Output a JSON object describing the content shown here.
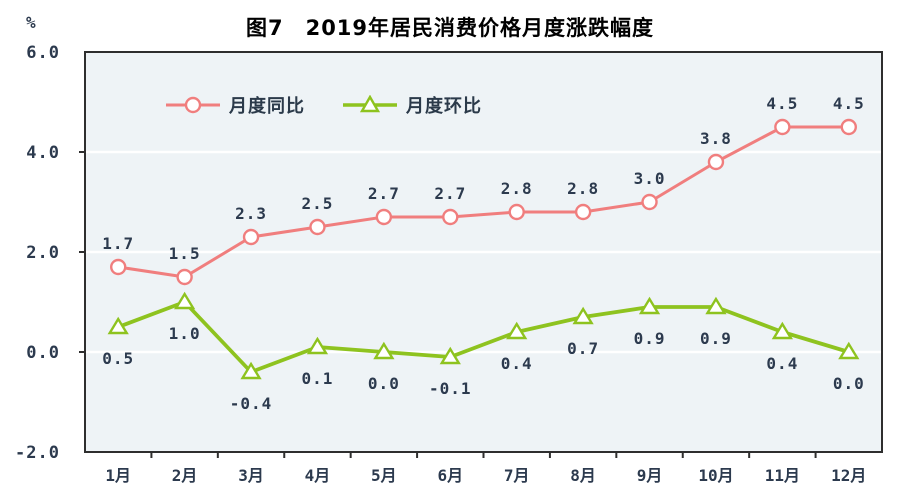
{
  "chart_data": {
    "type": "line",
    "title": "图7　2019年居民消费价格月度涨跌幅度",
    "ylabel": "%",
    "xlabel": "",
    "categories": [
      "1月",
      "2月",
      "3月",
      "4月",
      "5月",
      "6月",
      "7月",
      "8月",
      "9月",
      "10月",
      "11月",
      "12月"
    ],
    "series": [
      {
        "name": "月度同比",
        "marker": "circle",
        "color": "#f07e7e",
        "label_position": "above",
        "values": [
          1.7,
          1.5,
          2.3,
          2.5,
          2.7,
          2.7,
          2.8,
          2.8,
          3.0,
          3.8,
          4.5,
          4.5
        ]
      },
      {
        "name": "月度环比",
        "marker": "triangle",
        "color": "#8ec31f",
        "label_position": "below",
        "values": [
          0.5,
          1.0,
          -0.4,
          0.1,
          0.0,
          -0.1,
          0.4,
          0.7,
          0.9,
          0.9,
          0.4,
          0.0
        ]
      }
    ],
    "ylim": [
      -2.0,
      6.0
    ],
    "y_ticks": [
      6.0,
      4.0,
      2.0,
      0.0,
      -2.0
    ],
    "y_tick_labels": [
      "6.0",
      "4.0",
      "2.0",
      "0.0",
      "-2.0"
    ],
    "gridlines": [
      4.0,
      2.0,
      0.0
    ],
    "grid": "horizontal-white",
    "legend_position": "top-left-inside",
    "plot_bg": "#eef3f6",
    "border_color": "#2e2e2e",
    "label_color": "#2c3a4e"
  }
}
